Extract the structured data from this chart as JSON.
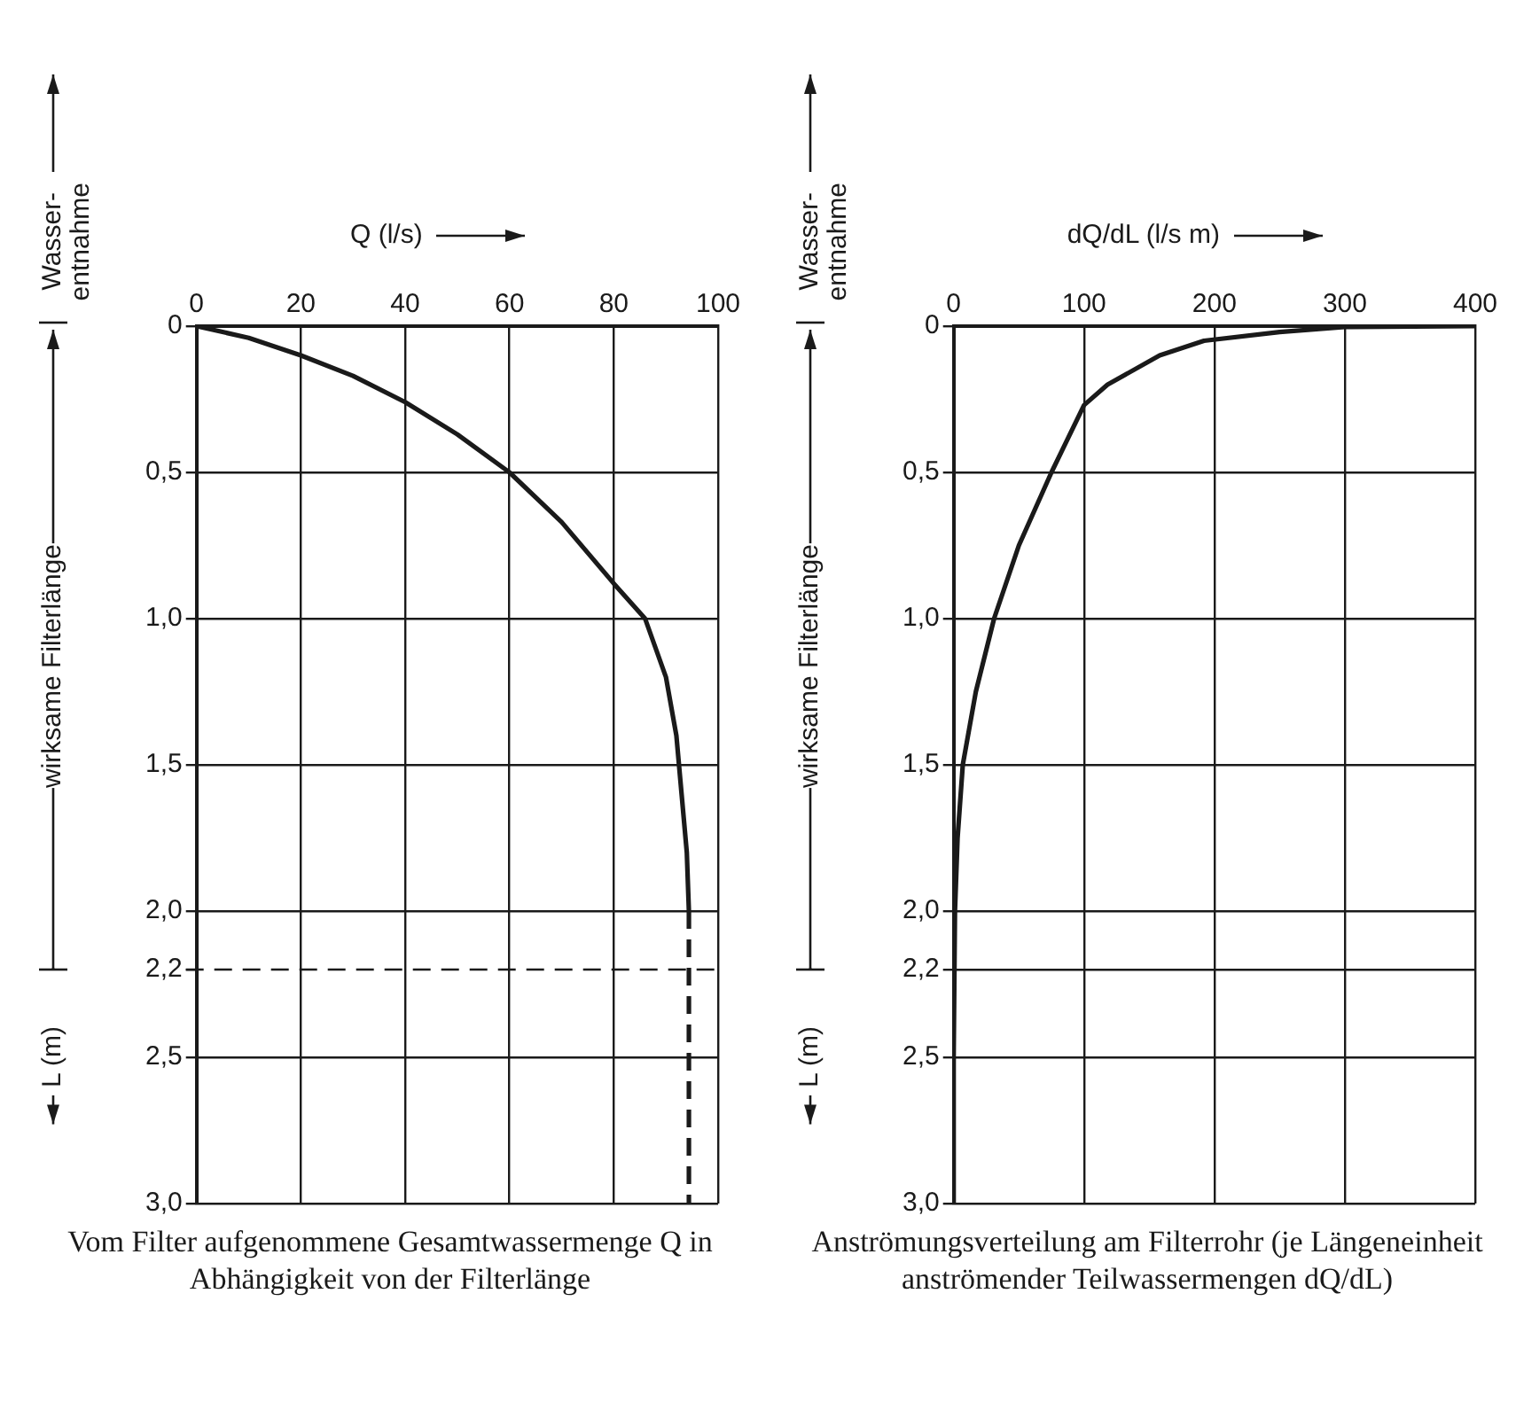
{
  "chart_data": [
    {
      "type": "line",
      "xlabel": "Q (l/s)",
      "ylabel": "L (m)",
      "xlim": [
        0,
        100
      ],
      "xticks": [
        0,
        20,
        40,
        60,
        80,
        100
      ],
      "ylim": [
        3,
        0
      ],
      "yticks": [
        0,
        {
          "value": 0.5,
          "label": "0,5"
        },
        {
          "value": 1.0,
          "label": "1,0"
        },
        {
          "value": 1.5,
          "label": "1,5"
        },
        {
          "value": 2.0,
          "label": "2,0"
        },
        {
          "value": 2.2,
          "label": "2,2"
        },
        {
          "value": 2.5,
          "label": "2,5"
        },
        {
          "value": 3.0,
          "label": "3,0"
        }
      ],
      "grid": true,
      "marker": "none",
      "series": [
        {
          "color": "#1a1a1a",
          "line_style": "solid",
          "x": [
            0,
            10,
            20,
            30,
            40,
            50,
            60,
            70,
            80,
            86,
            90,
            92,
            93,
            94,
            94.4
          ],
          "values": [
            0,
            0.04,
            0.1,
            0.17,
            0.26,
            0.37,
            0.5,
            0.67,
            0.88,
            1.0,
            1.2,
            1.4,
            1.6,
            1.8,
            2.0
          ]
        },
        {
          "color": "#1a1a1a",
          "line_style": "dashed",
          "x": [
            94.4,
            94.4
          ],
          "values": [
            2.0,
            3.0
          ]
        }
      ],
      "ref_lines": [
        {
          "axis": "y",
          "value": 2.2,
          "color": "#1a1a1a",
          "line_style": "dashed"
        }
      ],
      "annotations": [
        "Wasser-\nentnahme",
        "wirksame Filterlänge",
        "Vom Filter aufgenommene Gesamtwassermenge Q in Abhängigkeit von der Filterlänge"
      ]
    },
    {
      "type": "line",
      "xlabel": "dQ/dL (l/s m)",
      "ylabel": "L (m)",
      "xlim": [
        0,
        400
      ],
      "xticks": [
        0,
        100,
        200,
        300,
        400
      ],
      "ylim": [
        3,
        0
      ],
      "yticks": [
        0,
        {
          "value": 0.5,
          "label": "0,5"
        },
        {
          "value": 1.0,
          "label": "1,0"
        },
        {
          "value": 1.5,
          "label": "1,5"
        },
        {
          "value": 2.0,
          "label": "2,0"
        },
        {
          "value": 2.2,
          "label": "2,2"
        },
        {
          "value": 2.5,
          "label": "2,5"
        },
        {
          "value": 3.0,
          "label": "3,0"
        }
      ],
      "grid": true,
      "marker": "none",
      "series": [
        {
          "color": "#1a1a1a",
          "line_style": "solid",
          "x": [
            400,
            300,
            250,
            192,
            158,
            118,
            100,
            75,
            50,
            31,
            17,
            7,
            3,
            1,
            0,
            0
          ],
          "values": [
            0,
            0.003,
            0.02,
            0.05,
            0.1,
            0.2,
            0.27,
            0.5,
            0.75,
            1.0,
            1.25,
            1.5,
            1.75,
            2.0,
            2.5,
            3.0
          ]
        }
      ],
      "annotations": [
        "Wasser-\nentnahme",
        "wirksame Filterlänge",
        "Anströmungsverteilung am Filterrohr (je Längeneinheit anströmender Teilwassermengen dQ/dL)"
      ]
    }
  ]
}
